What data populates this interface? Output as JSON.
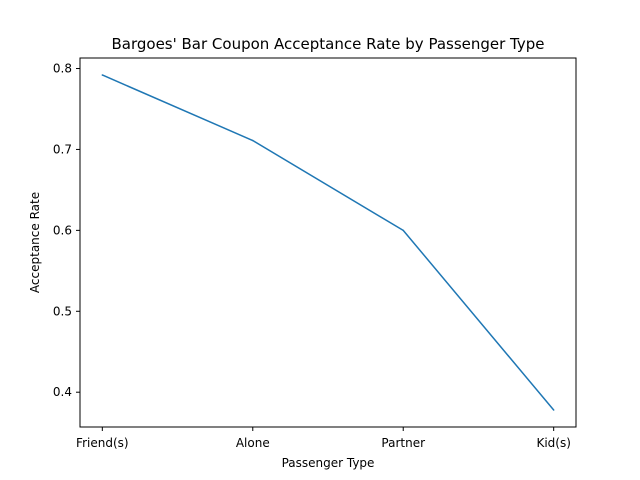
{
  "chart_data": {
    "type": "line",
    "title": "Bargoes' Bar Coupon Acceptance Rate by Passenger Type",
    "xlabel": "Passenger Type",
    "ylabel": "Acceptance Rate",
    "categories": [
      "Friend(s)",
      "Alone",
      "Partner",
      "Kid(s)"
    ],
    "series": [
      {
        "values": [
          0.792,
          0.711,
          0.6,
          0.378
        ]
      }
    ],
    "ylim": [
      0.357,
      0.813
    ],
    "yticks": [
      0.4,
      0.5,
      0.6,
      0.7,
      0.8
    ],
    "ytick_labels": [
      "0.4",
      "0.5",
      "0.6",
      "0.7",
      "0.8"
    ],
    "grid": false,
    "line_color": "#1f77b4"
  }
}
